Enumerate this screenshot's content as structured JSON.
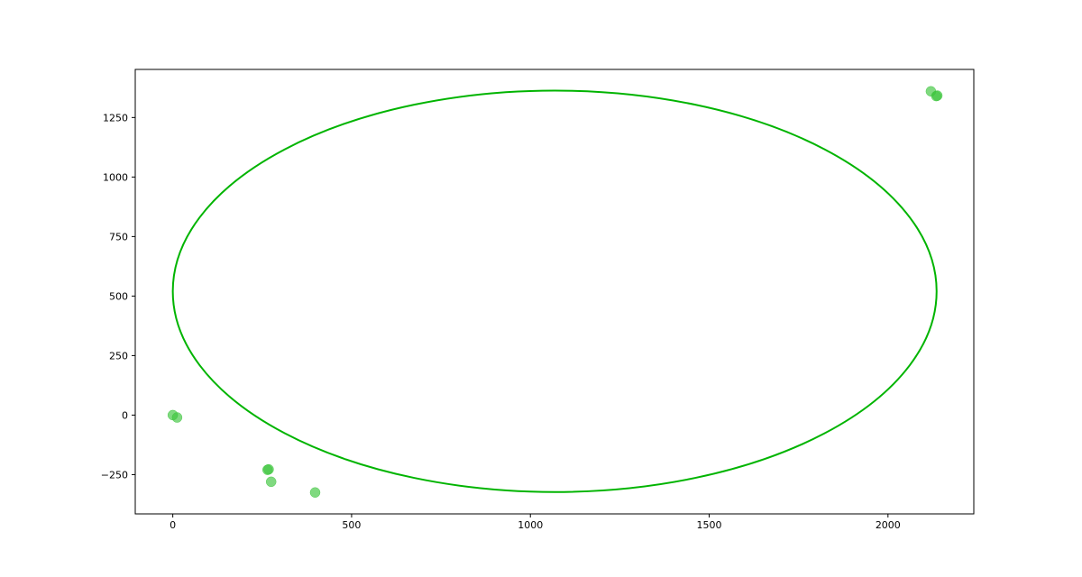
{
  "chart_data": {
    "type": "scatter",
    "title": "",
    "xlabel": "",
    "ylabel": "",
    "xlim": [
      -105,
      2240
    ],
    "ylim": [
      -415,
      1452
    ],
    "xticks": [
      0,
      500,
      1000,
      1500,
      2000
    ],
    "yticks": [
      -250,
      0,
      250,
      500,
      750,
      1000,
      1250
    ],
    "grid": false,
    "series": [
      {
        "points": [
          {
            "x": 0,
            "y": 0
          },
          {
            "x": 12,
            "y": -10
          },
          {
            "x": 265,
            "y": -230
          },
          {
            "x": 268,
            "y": -228
          },
          {
            "x": 275,
            "y": -280
          },
          {
            "x": 398,
            "y": -325
          },
          {
            "x": 2120,
            "y": 1360
          },
          {
            "x": 2135,
            "y": 1340
          },
          {
            "x": 2138,
            "y": 1342
          }
        ],
        "color": "#3cc43c"
      }
    ],
    "ellipse": {
      "cx": 1068,
      "cy": 520,
      "rx": 1068,
      "ry": 843,
      "color": "#00b400"
    }
  }
}
